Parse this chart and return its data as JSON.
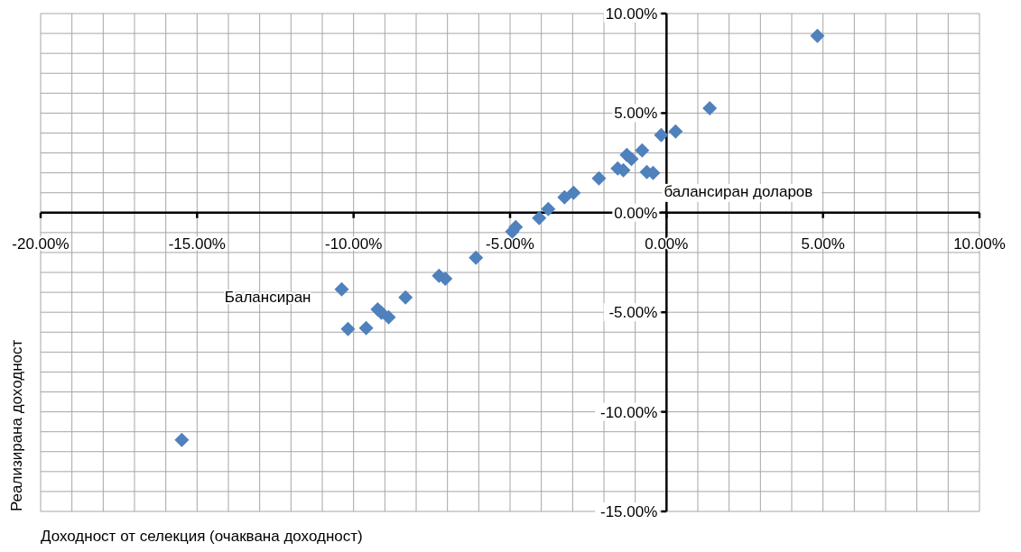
{
  "chart_data": {
    "type": "scatter",
    "xlabel": "Доходност от селекция (очаквана доходност)",
    "ylabel": "Реализирана доходност",
    "marker": "diamond",
    "grid": true,
    "xlim": [
      -20,
      10
    ],
    "ylim": [
      -15,
      10
    ],
    "xticks": [
      {
        "value": -20,
        "label": "-20.00%"
      },
      {
        "value": -19,
        "label": null
      },
      {
        "value": -18,
        "label": null
      },
      {
        "value": -17,
        "label": null
      },
      {
        "value": -16,
        "label": null
      },
      {
        "value": -15,
        "label": "-15.00%"
      },
      {
        "value": -14,
        "label": null
      },
      {
        "value": -13,
        "label": null
      },
      {
        "value": -12,
        "label": null
      },
      {
        "value": -11,
        "label": null
      },
      {
        "value": -10,
        "label": "-10.00%"
      },
      {
        "value": -9,
        "label": null
      },
      {
        "value": -8,
        "label": null
      },
      {
        "value": -7,
        "label": null
      },
      {
        "value": -6,
        "label": null
      },
      {
        "value": -5,
        "label": "-5.00%"
      },
      {
        "value": -4,
        "label": null
      },
      {
        "value": -3,
        "label": null
      },
      {
        "value": -2,
        "label": null
      },
      {
        "value": -1,
        "label": null
      },
      {
        "value": 0,
        "label": "0.00%"
      },
      {
        "value": 1,
        "label": null
      },
      {
        "value": 2,
        "label": null
      },
      {
        "value": 3,
        "label": null
      },
      {
        "value": 4,
        "label": null
      },
      {
        "value": 5,
        "label": "5.00%"
      },
      {
        "value": 6,
        "label": null
      },
      {
        "value": 7,
        "label": null
      },
      {
        "value": 8,
        "label": null
      },
      {
        "value": 9,
        "label": null
      },
      {
        "value": 10,
        "label": "10.00%"
      }
    ],
    "yticks": [
      {
        "value": -15,
        "label": "-15.00%"
      },
      {
        "value": -14,
        "label": null
      },
      {
        "value": -13,
        "label": null
      },
      {
        "value": -12,
        "label": null
      },
      {
        "value": -11,
        "label": null
      },
      {
        "value": -10,
        "label": "-10.00%"
      },
      {
        "value": -9,
        "label": null
      },
      {
        "value": -8,
        "label": null
      },
      {
        "value": -7,
        "label": null
      },
      {
        "value": -6,
        "label": null
      },
      {
        "value": -5,
        "label": "-5.00%"
      },
      {
        "value": -4,
        "label": null
      },
      {
        "value": -3,
        "label": null
      },
      {
        "value": -2,
        "label": null
      },
      {
        "value": -1,
        "label": null
      },
      {
        "value": 0,
        "label": "0.00%"
      },
      {
        "value": 1,
        "label": null
      },
      {
        "value": 2,
        "label": null
      },
      {
        "value": 3,
        "label": null
      },
      {
        "value": 4,
        "label": null
      },
      {
        "value": 5,
        "label": "5.00%"
      },
      {
        "value": 6,
        "label": null
      },
      {
        "value": 7,
        "label": null
      },
      {
        "value": 8,
        "label": null
      },
      {
        "value": 9,
        "label": null
      },
      {
        "value": 10,
        "label": "10.00%"
      }
    ],
    "series": [
      {
        "color": "#4f81bd",
        "x": [
          4.82,
          1.38,
          0.29,
          -0.17,
          -0.78,
          -1.27,
          -1.12,
          -1.56,
          -1.38,
          -0.63,
          -0.43,
          -2.16,
          -3.26,
          -2.97,
          -4.07,
          -3.78,
          -4.93,
          -4.82,
          -6.09,
          -7.27,
          -7.07,
          -8.34,
          -9.23,
          -9.11,
          -8.88,
          -10.38,
          -10.18,
          -9.6,
          -15.49
        ],
        "values": [
          8.88,
          5.25,
          4.08,
          3.9,
          3.13,
          2.9,
          2.7,
          2.22,
          2.13,
          2.04,
          1.99,
          1.72,
          0.77,
          1.0,
          -0.27,
          0.18,
          -0.95,
          -0.72,
          -2.26,
          -3.17,
          -3.31,
          -4.26,
          -4.85,
          -5.03,
          -5.25,
          -3.85,
          -5.84,
          -5.8,
          -11.41
        ]
      }
    ],
    "annotations": [
      {
        "text": "балансиран доларов",
        "x": -0.43,
        "y": 1.99
      },
      {
        "text": "Балансиран",
        "x": -10.38,
        "y": -3.85
      }
    ]
  }
}
